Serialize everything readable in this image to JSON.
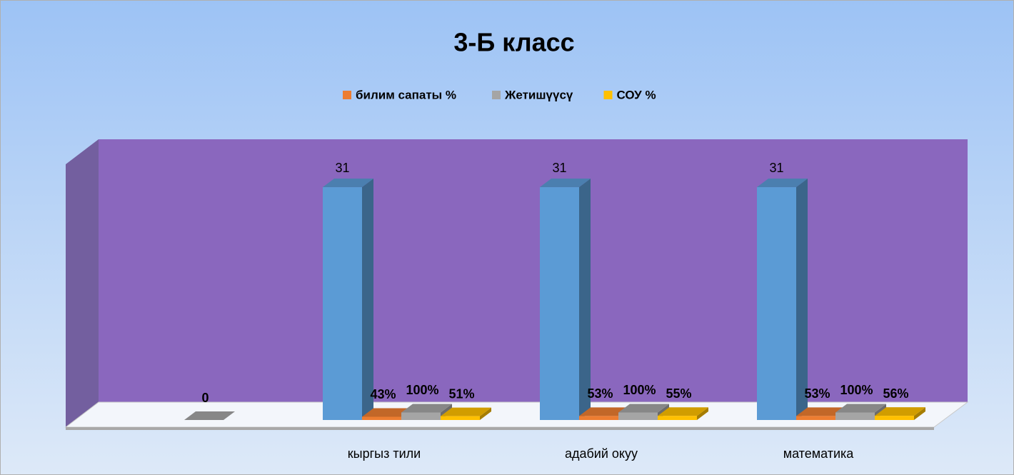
{
  "chart_data": {
    "type": "bar3d",
    "title": "3-Б класс",
    "categories": [
      null,
      "кыргыз тили",
      "адабий окуу",
      "математика"
    ],
    "ylim": [
      0,
      35
    ],
    "legend": "top",
    "series": [
      {
        "color": "#5b9bd5",
        "values": [
          null,
          31,
          31,
          31
        ]
      },
      {
        "name": "билим сапаты %",
        "color": "#ed7d31",
        "values": [
          null,
          0.43,
          0.53,
          0.53
        ],
        "value_labels": [
          null,
          "43%",
          "53%",
          "53%"
        ]
      },
      {
        "name": "Жетишүүсү",
        "color": "#a5a5a5",
        "values": [
          0,
          1,
          1,
          1
        ],
        "value_labels": [
          "0",
          "100%",
          "100%",
          "100%"
        ]
      },
      {
        "name": "СОУ %",
        "color": "#ffc000",
        "values": [
          null,
          0.51,
          0.55,
          0.56
        ],
        "value_labels": [
          null,
          "51%",
          "55%",
          "56%"
        ]
      }
    ]
  }
}
